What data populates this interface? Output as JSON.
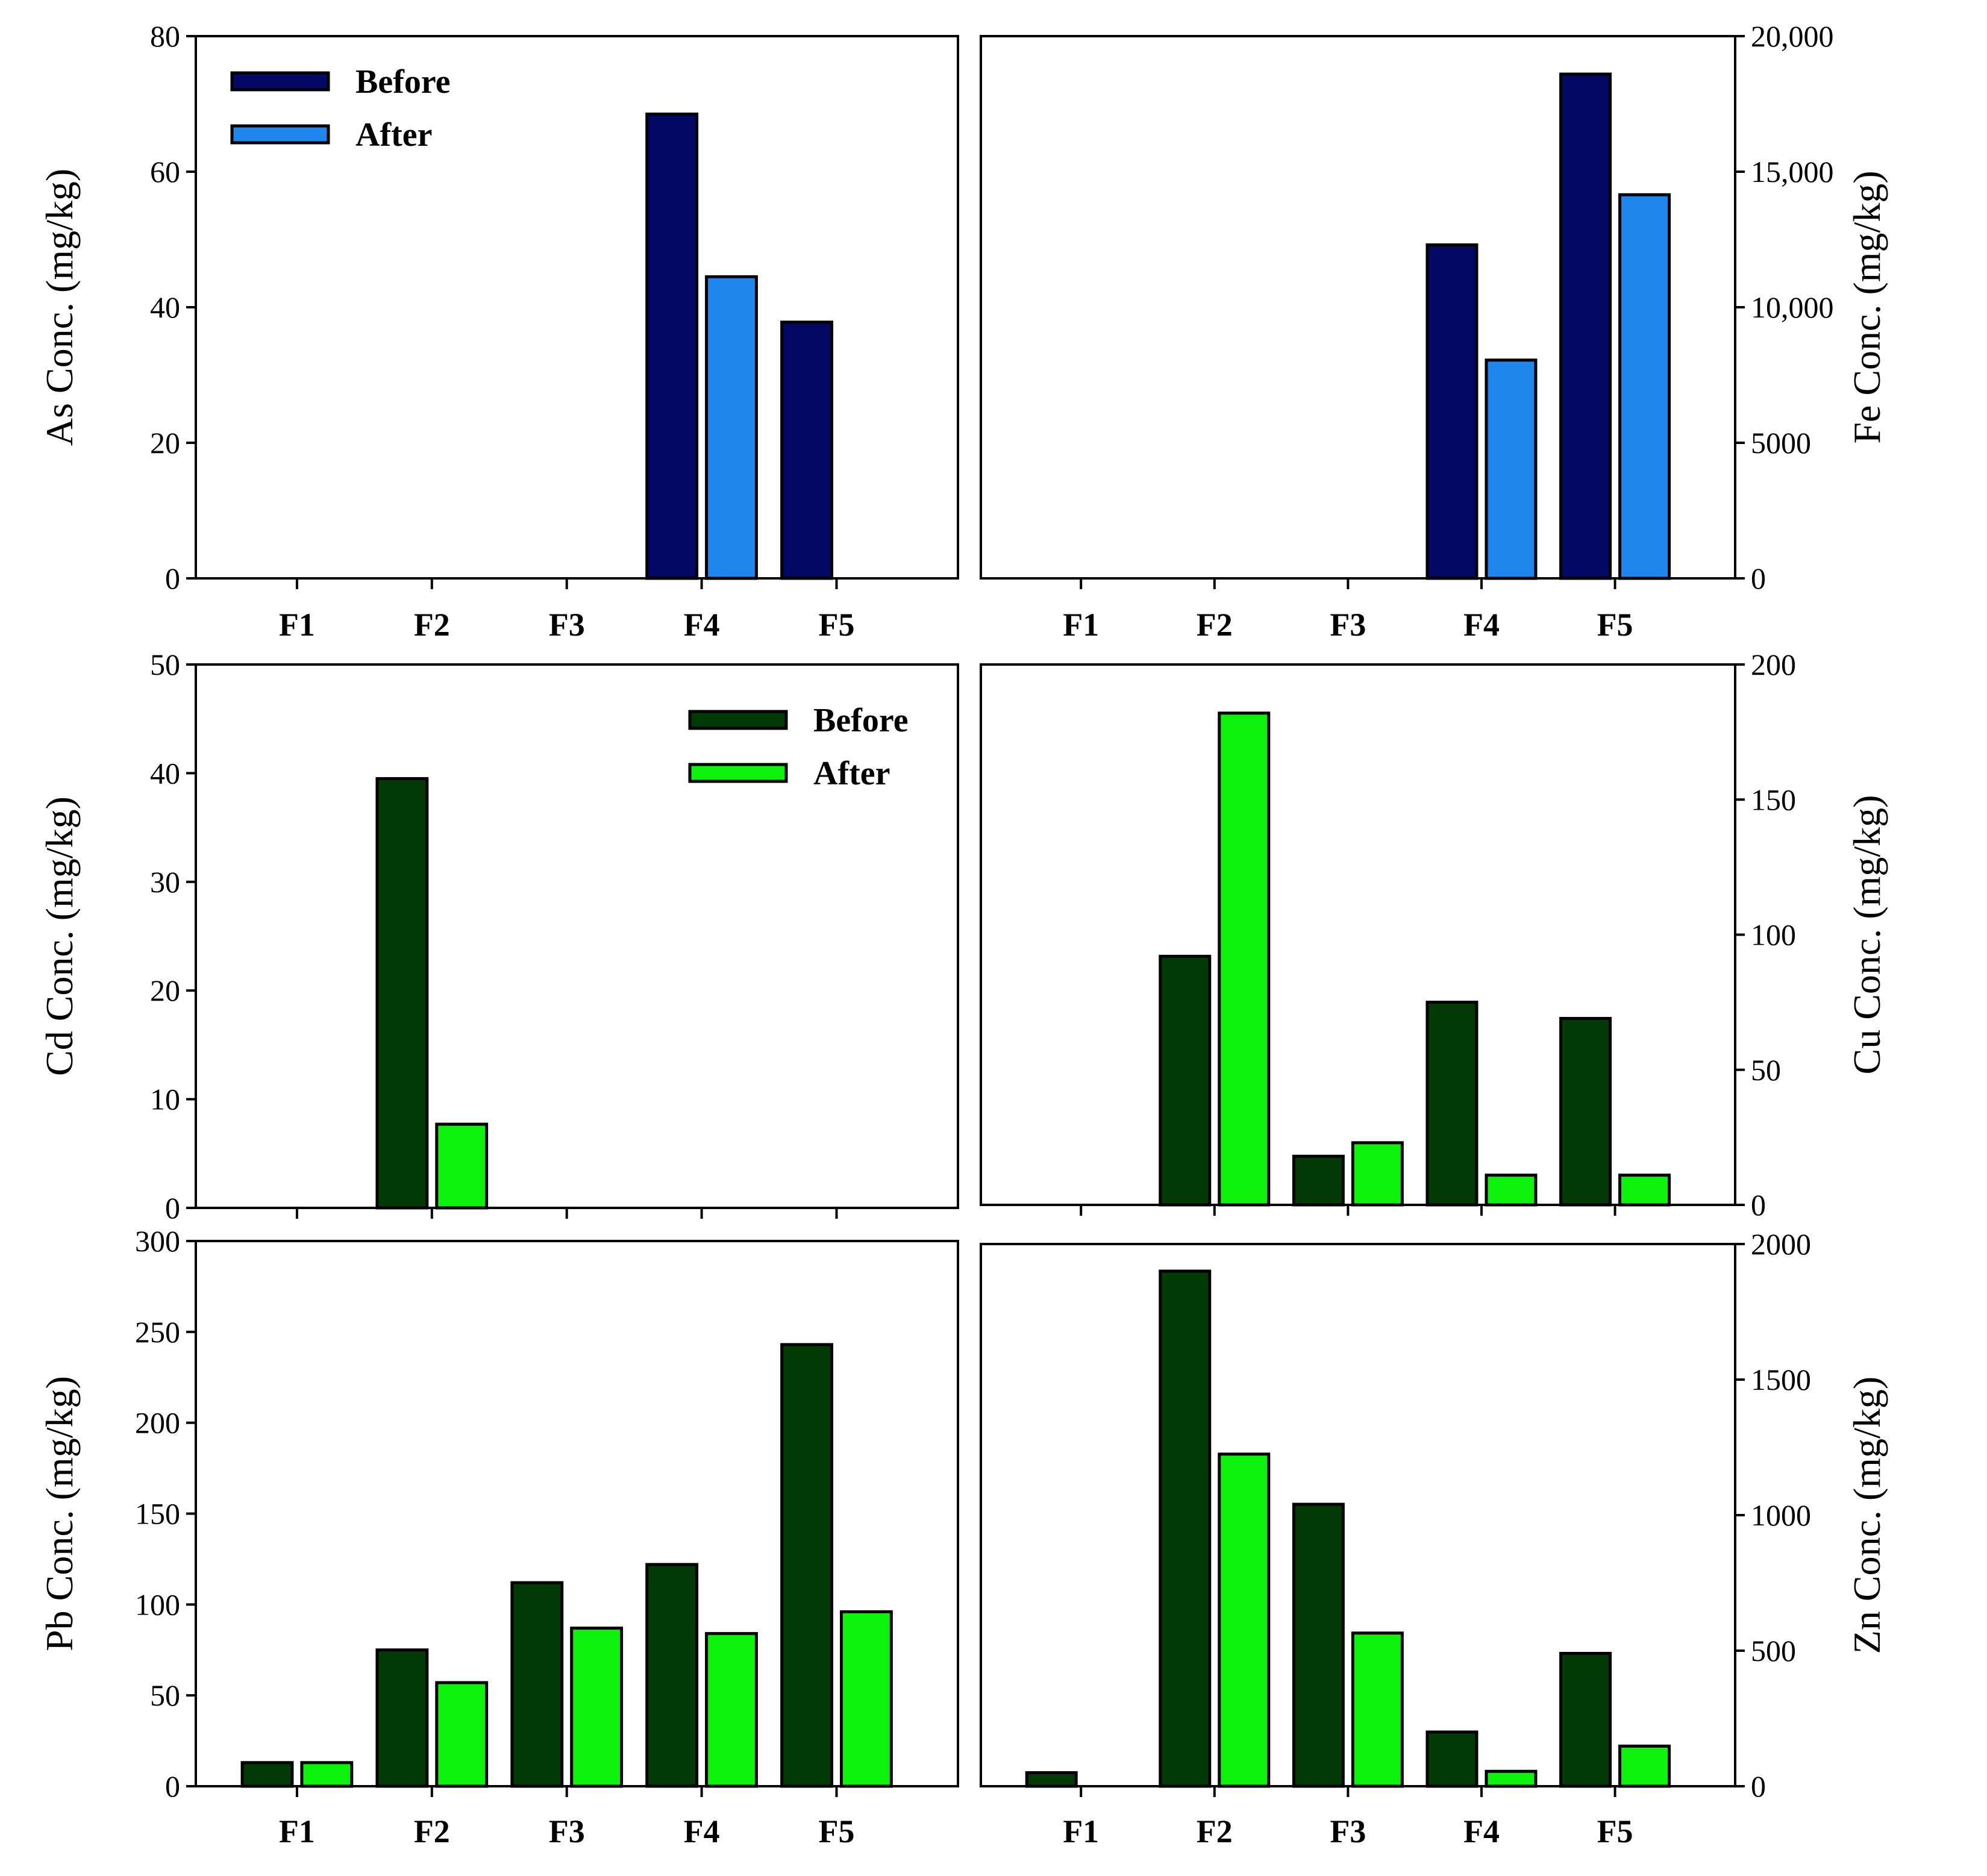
{
  "figure": {
    "colors": {
      "before_blue": "#020863",
      "after_blue": "#1e86ec",
      "before_green": "#013a04",
      "after_green": "#0cf20c"
    }
  },
  "chart_data": [
    {
      "id": "as",
      "type": "bar",
      "categories": [
        "F1",
        "F2",
        "F3",
        "F4",
        "F5"
      ],
      "series": [
        {
          "name": "Before",
          "values": [
            0,
            0,
            0,
            68.5,
            37.8
          ],
          "color": "#020863"
        },
        {
          "name": "After",
          "values": [
            0,
            0,
            0,
            44.5,
            0
          ],
          "color": "#1e86ec"
        }
      ],
      "ylabel": "As Conc. (mg/kg)",
      "ylim": [
        0,
        80
      ],
      "yticks": [
        0,
        20,
        40,
        60,
        80
      ],
      "ytick_labels": [
        "0",
        "20",
        "40",
        "60",
        "80"
      ],
      "yaxis_side": "left",
      "legend": {
        "position": "top-left",
        "entries": [
          "Before",
          "After"
        ]
      }
    },
    {
      "id": "fe",
      "type": "bar",
      "categories": [
        "F1",
        "F2",
        "F3",
        "F4",
        "F5"
      ],
      "series": [
        {
          "name": "Before",
          "values": [
            0,
            0,
            0,
            12300,
            18600
          ],
          "color": "#020863"
        },
        {
          "name": "After",
          "values": [
            0,
            0,
            0,
            8050,
            14150
          ],
          "color": "#1e86ec"
        }
      ],
      "ylabel": "Fe Conc. (mg/kg)",
      "ylim": [
        0,
        20000
      ],
      "yticks": [
        0,
        5000,
        10000,
        15000,
        20000
      ],
      "ytick_labels": [
        "0",
        "5000",
        "10,000",
        "15,000",
        "20,000"
      ],
      "yaxis_side": "right"
    },
    {
      "id": "cd",
      "type": "bar",
      "categories": [
        "F1",
        "F2",
        "F3",
        "F4",
        "F5"
      ],
      "series": [
        {
          "name": "Before",
          "values": [
            0,
            39.5,
            0,
            0,
            0
          ],
          "color": "#013a04"
        },
        {
          "name": "After",
          "values": [
            0,
            7.7,
            0,
            0,
            0
          ],
          "color": "#0cf20c"
        }
      ],
      "ylabel": "Cd Conc. (mg/kg)",
      "ylim": [
        0,
        50
      ],
      "yticks": [
        0,
        10,
        20,
        30,
        40,
        50
      ],
      "ytick_labels": [
        "0",
        "10",
        "20",
        "30",
        "40",
        "50"
      ],
      "yaxis_side": "left",
      "legend": {
        "position": "top-right",
        "entries": [
          "Before",
          "After"
        ]
      }
    },
    {
      "id": "cu",
      "type": "bar",
      "categories": [
        "F1",
        "F2",
        "F3",
        "F4",
        "F5"
      ],
      "series": [
        {
          "name": "Before",
          "values": [
            0,
            92,
            18,
            75,
            69
          ],
          "color": "#013a04"
        },
        {
          "name": "After",
          "values": [
            0,
            182,
            23,
            11,
            11
          ],
          "color": "#0cf20c"
        }
      ],
      "ylabel": "Cu Conc. (mg/kg)",
      "ylim": [
        0,
        200
      ],
      "yticks": [
        0,
        50,
        100,
        150,
        200
      ],
      "ytick_labels": [
        "0",
        "50",
        "100",
        "150",
        "200"
      ],
      "yaxis_side": "right"
    },
    {
      "id": "pb",
      "type": "bar",
      "categories": [
        "F1",
        "F2",
        "F3",
        "F4",
        "F5"
      ],
      "series": [
        {
          "name": "Before",
          "values": [
            13,
            75,
            112,
            122,
            243
          ],
          "color": "#013a04"
        },
        {
          "name": "After",
          "values": [
            13,
            57,
            87,
            84,
            96
          ],
          "color": "#0cf20c"
        }
      ],
      "ylabel": "Pb Conc. (mg/kg)",
      "ylim": [
        0,
        300
      ],
      "yticks": [
        0,
        50,
        100,
        150,
        200,
        250,
        300
      ],
      "ytick_labels": [
        "0",
        "50",
        "100",
        "150",
        "200",
        "250",
        "300"
      ],
      "yaxis_side": "left"
    },
    {
      "id": "zn",
      "type": "bar",
      "categories": [
        "F1",
        "F2",
        "F3",
        "F4",
        "F5"
      ],
      "series": [
        {
          "name": "Before",
          "values": [
            50,
            1900,
            1040,
            200,
            490
          ],
          "color": "#013a04"
        },
        {
          "name": "After",
          "values": [
            0,
            1225,
            565,
            55,
            148
          ],
          "color": "#0cf20c"
        }
      ],
      "ylabel": "Zn Conc. (mg/kg)",
      "ylim": [
        0,
        2000
      ],
      "yticks": [
        0,
        500,
        1000,
        1500,
        2000
      ],
      "ytick_labels": [
        "0",
        "500",
        "1000",
        "1500",
        "2000"
      ],
      "yaxis_side": "right"
    }
  ]
}
